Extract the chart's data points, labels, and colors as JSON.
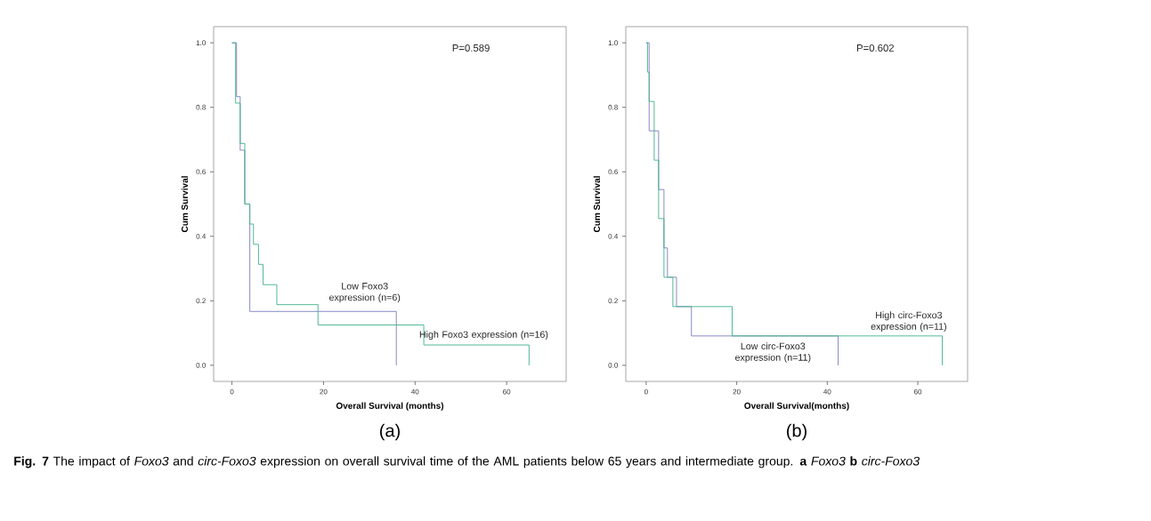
{
  "chart_data": [
    {
      "type": "step",
      "xlabel": "Overall Survival (months)",
      "ylabel": "Cum Survival",
      "xlim": [
        -4,
        73
      ],
      "ylim": [
        -0.05,
        1.05
      ],
      "xticks": [
        0,
        20,
        40,
        60
      ],
      "yticks": [
        {
          "value": 0,
          "label": "0.0"
        },
        {
          "value": 0.2,
          "label": "0.2"
        },
        {
          "value": 0.4,
          "label": "0.4"
        },
        {
          "value": 0.6,
          "label": "0.6"
        },
        {
          "value": 0.8,
          "label": "0.8"
        },
        {
          "value": 1,
          "label": "1.0"
        }
      ],
      "series": [
        {
          "name": "Low Foxo3 expression (n=6)",
          "color": "#7f80c4",
          "x": [
            0,
            1,
            1.8,
            2.8,
            3.9,
            35.9
          ],
          "values": [
            1,
            0.833,
            0.667,
            0.5,
            0.167,
            0
          ]
        },
        {
          "name": "High Foxo3 expression (n=16)",
          "color": "#45b48a",
          "x": [
            0,
            0.8,
            1.8,
            2.8,
            3.9,
            4.7,
            5.8,
            6.8,
            9.8,
            18.8,
            41.9,
            64.9
          ],
          "values": [
            1,
            0.813,
            0.688,
            0.5,
            0.438,
            0.375,
            0.313,
            0.25,
            0.188,
            0.125,
            0.063,
            0
          ]
        }
      ],
      "annotations": [
        "P=0.589",
        "(a)",
        "**Fig. 7** The impact of *Foxo3* and *circ-Foxo3* expression on overall survival time of the AML patients below 65 years and intermediate group. **a** *Foxo3* **b** *circ-Foxo3*"
      ]
    },
    {
      "type": "step",
      "xlabel": "Overall Survival(months)",
      "ylabel": "Cum Survival",
      "xlim": [
        -4.5,
        71
      ],
      "ylim": [
        -0.05,
        1.05
      ],
      "xticks": [
        0,
        20,
        40,
        60
      ],
      "yticks": [
        {
          "value": 0,
          "label": "0.0"
        },
        {
          "value": 0.2,
          "label": "0.2"
        },
        {
          "value": 0.4,
          "label": "0.4"
        },
        {
          "value": 0.6,
          "label": "0.6"
        },
        {
          "value": 0.8,
          "label": "0.8"
        },
        {
          "value": 1,
          "label": "1.0"
        }
      ],
      "series": [
        {
          "name": "Low circ-Foxo3 expression (n=11)",
          "color": "#7f80c4",
          "x": [
            0,
            0.66,
            2.75,
            3.93,
            4.7,
            6.7,
            10.0,
            42.4
          ],
          "values": [
            1,
            0.727,
            0.545,
            0.364,
            0.273,
            0.182,
            0.091,
            0
          ]
        },
        {
          "name": "High circ-Foxo3 expression (n=11)",
          "color": "#45b48a",
          "x": [
            0,
            0.3,
            0.66,
            1.77,
            2.75,
            3.93,
            5.9,
            19.0,
            65.4
          ],
          "values": [
            1,
            0.909,
            0.818,
            0.636,
            0.455,
            0.273,
            0.182,
            0.091,
            0
          ]
        }
      ],
      "annotations": [
        "P=0.602",
        "(b)"
      ]
    }
  ]
}
